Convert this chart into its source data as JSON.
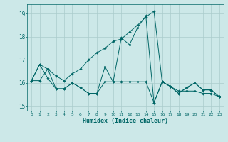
{
  "xlabel": "Humidex (Indice chaleur)",
  "bg_color": "#cce8e8",
  "grid_color": "#aacccc",
  "line_color": "#006666",
  "xlim": [
    -0.5,
    23.5
  ],
  "ylim": [
    14.8,
    19.4
  ],
  "yticks": [
    15,
    16,
    17,
    18,
    19
  ],
  "xticks": [
    0,
    1,
    2,
    3,
    4,
    5,
    6,
    7,
    8,
    9,
    10,
    11,
    12,
    13,
    14,
    15,
    16,
    17,
    18,
    19,
    20,
    21,
    22,
    23
  ],
  "series": [
    {
      "x": [
        0,
        1,
        2,
        3,
        4,
        5,
        6,
        7,
        8,
        9,
        10,
        11,
        12,
        13,
        14,
        15,
        16,
        17,
        18,
        19,
        20,
        21,
        22,
        23
      ],
      "y": [
        16.1,
        16.8,
        16.6,
        16.3,
        16.1,
        16.4,
        16.6,
        17.0,
        17.3,
        17.5,
        17.8,
        17.9,
        18.2,
        18.5,
        18.85,
        19.1,
        16.05,
        15.85,
        15.65,
        15.65,
        15.65,
        15.55,
        15.55,
        15.4
      ]
    },
    {
      "x": [
        0,
        1,
        2,
        3,
        4,
        5,
        6,
        7,
        8,
        9,
        10,
        11,
        12,
        13,
        14,
        15,
        16,
        17,
        18,
        19,
        20,
        21,
        22,
        23
      ],
      "y": [
        16.1,
        16.8,
        16.2,
        15.75,
        15.75,
        16.0,
        15.8,
        15.55,
        15.55,
        16.7,
        16.05,
        17.95,
        17.65,
        18.4,
        18.9,
        15.15,
        16.05,
        15.85,
        15.55,
        15.8,
        16.0,
        15.7,
        15.7,
        15.4
      ]
    },
    {
      "x": [
        0,
        1,
        2,
        3,
        4,
        5,
        6,
        7,
        8,
        9,
        10,
        11,
        12,
        13,
        14,
        15,
        16,
        17,
        18,
        19,
        20,
        21,
        22,
        23
      ],
      "y": [
        16.1,
        16.1,
        16.6,
        15.75,
        15.75,
        16.0,
        15.8,
        15.55,
        15.55,
        16.05,
        16.05,
        16.05,
        16.05,
        16.05,
        16.05,
        15.15,
        16.05,
        15.85,
        15.55,
        15.8,
        16.0,
        15.7,
        15.7,
        15.4
      ]
    }
  ]
}
